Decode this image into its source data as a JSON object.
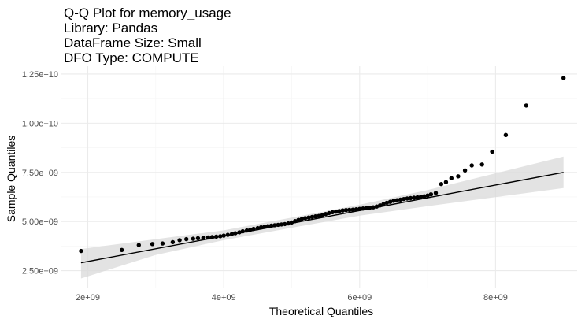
{
  "chart_data": {
    "type": "scatter",
    "title_lines": [
      "Q-Q Plot for memory_usage",
      "Library: Pandas",
      "DataFrame Size: Small",
      "DFO Type: COMPUTE"
    ],
    "xlabel": "Theoretical Quantiles",
    "ylabel": "Sample Quantiles",
    "x_ticks": [
      {
        "value": 2000000000,
        "label": "2e+09"
      },
      {
        "value": 4000000000,
        "label": "4e+09"
      },
      {
        "value": 6000000000,
        "label": "6e+09"
      },
      {
        "value": 8000000000,
        "label": "8e+09"
      }
    ],
    "y_ticks": [
      {
        "value": 2500000000,
        "label": "2.50e+09"
      },
      {
        "value": 5000000000,
        "label": "5.00e+09"
      },
      {
        "value": 7500000000,
        "label": "7.50e+09"
      },
      {
        "value": 10000000000,
        "label": "1.00e+10"
      },
      {
        "value": 12500000000,
        "label": "1.25e+10"
      }
    ],
    "xlim": [
      1600000000,
      9200000000
    ],
    "ylim": [
      1600000000,
      12900000000
    ],
    "grid": true,
    "colors": {
      "background": "#ffffff",
      "grid_major": "#ebebeb",
      "grid_minor": "#f5f5f5",
      "points": "#000000",
      "reference_line": "#000000",
      "confidence_band": "#d9d9d9"
    },
    "reference_line": {
      "x": [
        1900000000,
        9000000000
      ],
      "y": [
        2900000000,
        7500000000
      ]
    },
    "confidence_band": {
      "x": [
        1900000000,
        3000000000,
        4000000000,
        5000000000,
        6000000000,
        7000000000,
        8000000000,
        9000000000
      ],
      "upper": [
        3600000000,
        4100000000,
        4550000000,
        5200000000,
        5850000000,
        6600000000,
        7450000000,
        8300000000
      ],
      "lower": [
        2100000000,
        3300000000,
        4050000000,
        4680000000,
        5300000000,
        5780000000,
        6240000000,
        6700000000
      ]
    },
    "points": {
      "x": [
        1900000000,
        2500000000,
        2750000000,
        2950000000,
        3100000000,
        3250000000,
        3350000000,
        3450000000,
        3550000000,
        3620000000,
        3700000000,
        3770000000,
        3830000000,
        3890000000,
        3950000000,
        4000000000,
        4060000000,
        4120000000,
        4170000000,
        4230000000,
        4280000000,
        4340000000,
        4390000000,
        4440000000,
        4500000000,
        4550000000,
        4600000000,
        4650000000,
        4700000000,
        4750000000,
        4800000000,
        4850000000,
        4900000000,
        4950000000,
        5000000000,
        5050000000,
        5100000000,
        5150000000,
        5200000000,
        5250000000,
        5300000000,
        5350000000,
        5400000000,
        5450000000,
        5500000000,
        5550000000,
        5600000000,
        5650000000,
        5700000000,
        5750000000,
        5800000000,
        5850000000,
        5900000000,
        5950000000,
        6000000000,
        6050000000,
        6100000000,
        6150000000,
        6200000000,
        6250000000,
        6300000000,
        6350000000,
        6400000000,
        6450000000,
        6500000000,
        6550000000,
        6600000000,
        6650000000,
        6700000000,
        6750000000,
        6800000000,
        6850000000,
        6900000000,
        6950000000,
        7000000000,
        7050000000,
        7120000000,
        7200000000,
        7270000000,
        7350000000,
        7450000000,
        7550000000,
        7650000000,
        7800000000,
        7950000000,
        8150000000,
        8450000000,
        9000000000
      ],
      "y": [
        3500000000,
        3550000000,
        3800000000,
        3850000000,
        3880000000,
        3950000000,
        4050000000,
        4100000000,
        4120000000,
        4150000000,
        4170000000,
        4190000000,
        4210000000,
        4230000000,
        4250000000,
        4280000000,
        4320000000,
        4360000000,
        4400000000,
        4450000000,
        4500000000,
        4540000000,
        4580000000,
        4620000000,
        4660000000,
        4700000000,
        4730000000,
        4760000000,
        4790000000,
        4810000000,
        4830000000,
        4850000000,
        4870000000,
        4900000000,
        4950000000,
        5020000000,
        5080000000,
        5130000000,
        5170000000,
        5200000000,
        5230000000,
        5260000000,
        5280000000,
        5320000000,
        5380000000,
        5430000000,
        5470000000,
        5500000000,
        5530000000,
        5560000000,
        5580000000,
        5590000000,
        5600000000,
        5620000000,
        5640000000,
        5660000000,
        5680000000,
        5700000000,
        5720000000,
        5760000000,
        5820000000,
        5880000000,
        5950000000,
        6000000000,
        6050000000,
        6080000000,
        6110000000,
        6140000000,
        6170000000,
        6190000000,
        6210000000,
        6230000000,
        6250000000,
        6280000000,
        6320000000,
        6380000000,
        6450000000,
        6900000000,
        7000000000,
        7200000000,
        7300000000,
        7600000000,
        7850000000,
        7900000000,
        8550000000,
        9400000000,
        10900000000,
        12300000000
      ]
    }
  }
}
